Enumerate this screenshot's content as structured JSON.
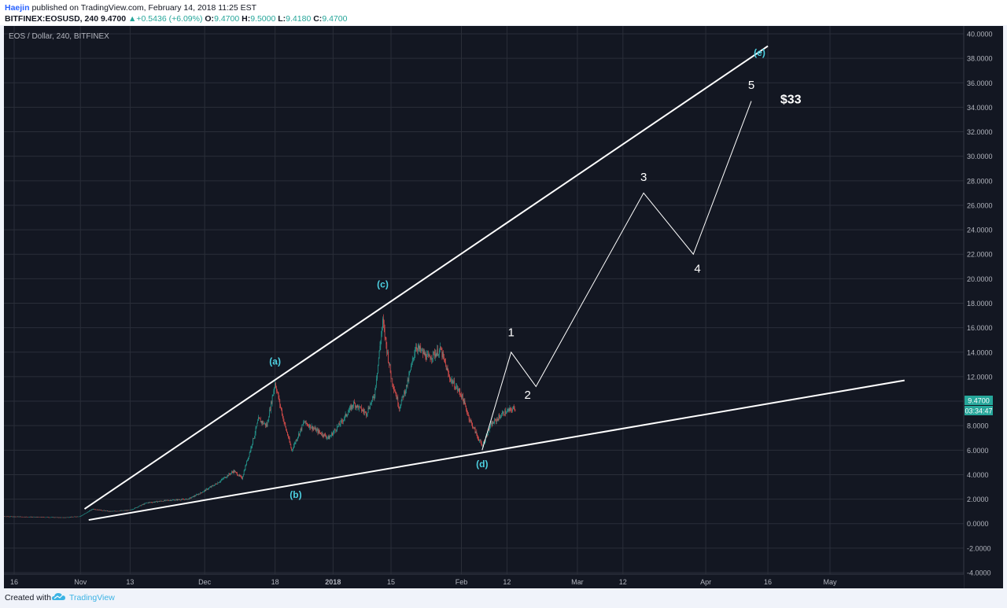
{
  "header": {
    "author": "Haejin",
    "published": "published on TradingView.com, February 14, 2018 11:25 EST",
    "symbol": "BITFINEX:EOSUSD, 240",
    "price": "9.4700",
    "change": "+0.5436 (+6.09%)",
    "o_label": "O:",
    "o_value": "9.4700",
    "h_label": "H:",
    "h_value": "9.5000",
    "l_label": "L:",
    "l_value": "9.4180",
    "c_label": "C:",
    "c_value": "9.4700"
  },
  "footer": {
    "created_with": "Created with",
    "brand": "TradingView"
  },
  "colors": {
    "background": "#131722",
    "grid": "#2a2e39",
    "up": "#26a69a",
    "down": "#ef5350",
    "wave_letter": "#4dd0e1",
    "wave_number": "#ffffff",
    "axis_text": "#b2b5be"
  },
  "chart_data": {
    "type": "candlestick",
    "title": "EOS / Dollar, 240, BITFINEX",
    "ylim": [
      -4,
      40
    ],
    "y_ticks": [
      "40.0000",
      "38.0000",
      "36.0000",
      "34.0000",
      "32.0000",
      "30.0000",
      "28.0000",
      "26.0000",
      "24.0000",
      "22.0000",
      "20.0000",
      "18.0000",
      "16.0000",
      "14.0000",
      "12.0000",
      "10.0000",
      "8.0000",
      "6.0000",
      "4.0000",
      "2.0000",
      "0.0000",
      "-2.0000",
      "-4.0000"
    ],
    "x_ticks": [
      {
        "label": "16",
        "date": "2017-10-16"
      },
      {
        "label": "Nov",
        "date": "2017-11-01"
      },
      {
        "label": "13",
        "date": "2017-11-13"
      },
      {
        "label": "Dec",
        "date": "2017-12-01"
      },
      {
        "label": "18",
        "date": "2017-12-18"
      },
      {
        "label": "2018",
        "date": "2018-01-01"
      },
      {
        "label": "15",
        "date": "2018-01-15"
      },
      {
        "label": "Feb",
        "date": "2018-02-01"
      },
      {
        "label": "12",
        "date": "2018-02-12"
      },
      {
        "label": "Mar",
        "date": "2018-03-01"
      },
      {
        "label": "12",
        "date": "2018-03-12"
      },
      {
        "label": "Apr",
        "date": "2018-04-01"
      },
      {
        "label": "16",
        "date": "2018-04-16"
      },
      {
        "label": "May",
        "date": "2018-05-01"
      }
    ],
    "last_price": "9.4700",
    "countdown": "03:34:47",
    "price_path": [
      [
        "2017-10-11",
        0.6
      ],
      [
        "2017-10-20",
        0.55
      ],
      [
        "2017-10-28",
        0.5
      ],
      [
        "2017-11-01",
        0.6
      ],
      [
        "2017-11-04",
        1.2
      ],
      [
        "2017-11-08",
        1.0
      ],
      [
        "2017-11-13",
        1.1
      ],
      [
        "2017-11-17",
        1.7
      ],
      [
        "2017-11-22",
        1.9
      ],
      [
        "2017-11-27",
        2.0
      ],
      [
        "2017-11-30",
        2.5
      ],
      [
        "2017-12-04",
        3.3
      ],
      [
        "2017-12-08",
        4.3
      ],
      [
        "2017-12-10",
        3.7
      ],
      [
        "2017-12-12",
        6.0
      ],
      [
        "2017-12-14",
        8.5
      ],
      [
        "2017-12-16",
        8.0
      ],
      [
        "2017-12-18",
        11.5
      ],
      [
        "2017-12-20",
        8.5
      ],
      [
        "2017-12-22",
        6.0
      ],
      [
        "2017-12-25",
        8.3
      ],
      [
        "2017-12-28",
        7.6
      ],
      [
        "2017-12-31",
        7.0
      ],
      [
        "2018-01-03",
        8.3
      ],
      [
        "2018-01-06",
        9.8
      ],
      [
        "2018-01-09",
        9.0
      ],
      [
        "2018-01-11",
        10.5
      ],
      [
        "2018-01-13",
        16.5
      ],
      [
        "2018-01-15",
        12.0
      ],
      [
        "2018-01-17",
        9.5
      ],
      [
        "2018-01-19",
        11.5
      ],
      [
        "2018-01-21",
        14.5
      ],
      [
        "2018-01-24",
        13.5
      ],
      [
        "2018-01-27",
        14.2
      ],
      [
        "2018-01-29",
        12.0
      ],
      [
        "2018-02-01",
        10.5
      ],
      [
        "2018-02-03",
        8.5
      ],
      [
        "2018-02-06",
        6.3
      ],
      [
        "2018-02-08",
        8.0
      ],
      [
        "2018-02-11",
        9.0
      ],
      [
        "2018-02-14",
        9.47
      ]
    ],
    "trendlines": [
      {
        "name": "upper",
        "from": [
          "2017-11-02",
          1.2
        ],
        "to": [
          "2018-04-16",
          39.0
        ]
      },
      {
        "name": "lower",
        "from": [
          "2017-11-03",
          0.3
        ],
        "to": [
          "2018-05-19",
          11.7
        ]
      }
    ],
    "projection": [
      [
        "2018-02-06",
        6.0
      ],
      [
        "2018-02-13",
        14.0
      ],
      [
        "2018-02-19",
        11.2
      ],
      [
        "2018-03-17",
        27.0
      ],
      [
        "2018-03-29",
        22.0
      ],
      [
        "2018-04-12",
        34.5
      ]
    ],
    "wave_labels": [
      {
        "text": "(a)",
        "date": "2017-12-18",
        "y": 13.0,
        "kind": "letter"
      },
      {
        "text": "(b)",
        "date": "2017-12-23",
        "y": 2.1,
        "kind": "letter"
      },
      {
        "text": "(c)",
        "date": "2018-01-13",
        "y": 19.3,
        "kind": "letter"
      },
      {
        "text": "(d)",
        "date": "2018-02-06",
        "y": 4.6,
        "kind": "letter"
      },
      {
        "text": "(e)",
        "date": "2018-04-14",
        "y": 38.2,
        "kind": "letter"
      },
      {
        "text": "1",
        "date": "2018-02-13",
        "y": 15.3,
        "kind": "number"
      },
      {
        "text": "2",
        "date": "2018-02-17",
        "y": 10.2,
        "kind": "number"
      },
      {
        "text": "3",
        "date": "2018-03-17",
        "y": 28.0,
        "kind": "number"
      },
      {
        "text": "4",
        "date": "2018-03-30",
        "y": 20.5,
        "kind": "number"
      },
      {
        "text": "5",
        "date": "2018-04-12",
        "y": 35.5,
        "kind": "number"
      }
    ],
    "target_label": {
      "text": "$33",
      "date": "2018-04-19",
      "y": 34.3
    }
  }
}
